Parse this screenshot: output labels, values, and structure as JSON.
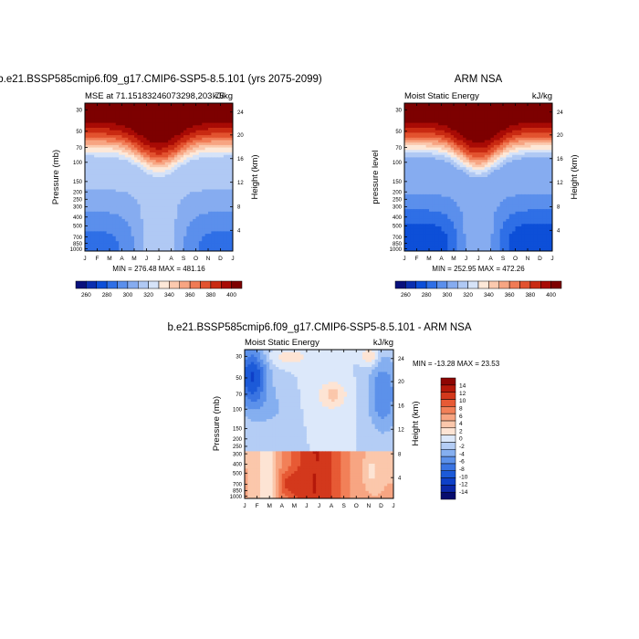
{
  "chart_data": [
    {
      "type": "heatmap",
      "title": "b.e21.BSSP585cmip6.f09_g17.CMIP6-SSP5-8.5.101 (yrs 2075-2099)",
      "left_string": "MSE at 71.15183246073298,203.75",
      "right_string": "kJ/kg",
      "ylabel": "Pressure (mb)",
      "ylabel_right": "Height (km)",
      "x_ticks": [
        "J",
        "F",
        "M",
        "A",
        "M",
        "J",
        "J",
        "A",
        "S",
        "O",
        "N",
        "D",
        "J"
      ],
      "y_ticks": [
        "30",
        "50",
        "70",
        "100",
        "150",
        "200",
        "250",
        "300",
        "400",
        "500",
        "700",
        "850",
        "1000"
      ],
      "y_ticks_right": [
        "24",
        "20",
        "16",
        "12",
        "8",
        "4"
      ],
      "stats": "MIN = 276.48 MAX = 481.16",
      "min": 276.48,
      "max": 481.16,
      "colorbar_labels": [
        "260",
        "280",
        "300",
        "320",
        "340",
        "360",
        "380",
        "400"
      ],
      "colorbar_range": [
        250,
        410
      ],
      "colorbar_step": 10
    },
    {
      "type": "heatmap",
      "title": "ARM NSA",
      "left_string": "Moist Static Energy",
      "right_string": "kJ/kg",
      "ylabel": "pressure level",
      "ylabel_right": "Height (km)",
      "x_ticks": [
        "J",
        "F",
        "M",
        "A",
        "M",
        "J",
        "J",
        "A",
        "S",
        "O",
        "N",
        "D",
        "J"
      ],
      "y_ticks": [
        "30",
        "50",
        "70",
        "100",
        "150",
        "200",
        "250",
        "300",
        "400",
        "500",
        "700",
        "850",
        "1000"
      ],
      "y_ticks_right": [
        "24",
        "20",
        "16",
        "12",
        "8",
        "4"
      ],
      "stats": "MIN = 252.95 MAX = 472.26",
      "min": 252.95,
      "max": 472.26,
      "colorbar_labels": [
        "260",
        "280",
        "300",
        "320",
        "340",
        "360",
        "380",
        "400"
      ],
      "colorbar_range": [
        250,
        410
      ],
      "colorbar_step": 10
    },
    {
      "type": "heatmap",
      "title": "b.e21.BSSP585cmip6.f09_g17.CMIP6-SSP5-8.5.101 - ARM NSA",
      "left_string": "Moist Static Energy",
      "right_string": "kJ/kg",
      "ylabel": "Pressure (mb)",
      "ylabel_right": "Height (km)",
      "x_ticks": [
        "J",
        "F",
        "M",
        "A",
        "M",
        "J",
        "J",
        "A",
        "S",
        "O",
        "N",
        "D",
        "J"
      ],
      "y_ticks": [
        "30",
        "50",
        "70",
        "100",
        "150",
        "200",
        "250",
        "300",
        "400",
        "500",
        "700",
        "850",
        "1000"
      ],
      "y_ticks_right": [
        "24",
        "20",
        "16",
        "12",
        "8",
        "4"
      ],
      "stats": "MIN = -13.28 MAX =  23.53",
      "min": -13.28,
      "max": 23.53,
      "colorbar_labels": [
        "14",
        "12",
        "10",
        "8",
        "6",
        "4",
        "2",
        "0",
        "-2",
        "-4",
        "-6",
        "-8",
        "-10",
        "-12",
        "-14"
      ],
      "colorbar_range": [
        -16,
        16
      ],
      "colorbar_step": 2
    }
  ],
  "colors": {
    "mse_palette": [
      "#08107c",
      "#0a2fb0",
      "#0d4fd8",
      "#2f6fe6",
      "#5b8fec",
      "#86acf0",
      "#b0c9f4",
      "#d6e3f8",
      "#fde8d8",
      "#fbc9ae",
      "#f7a582",
      "#f07b55",
      "#e2522f",
      "#c92a12",
      "#a80b05",
      "#7d0000"
    ],
    "diff_palette": [
      "#070d6e",
      "#0b28a8",
      "#0e40c8",
      "#1c5ad8",
      "#3a74e2",
      "#5c91ea",
      "#85aff0",
      "#b4cdf5",
      "#dce8fa",
      "#fde4d4",
      "#fbc7ab",
      "#f7a582",
      "#f28058",
      "#e75a35",
      "#d3381c",
      "#b5190a",
      "#8e0603"
    ]
  }
}
